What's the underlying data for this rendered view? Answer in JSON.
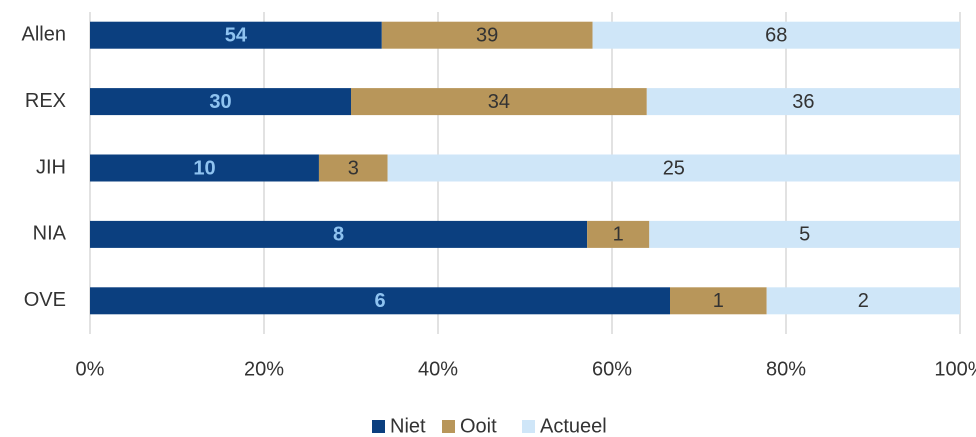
{
  "chart_data": {
    "type": "bar",
    "orientation": "horizontal",
    "stacking": "percent",
    "categories": [
      "Allen",
      "REX",
      "JIH",
      "NIA",
      "OVE"
    ],
    "series": [
      {
        "name": "Niet",
        "color": "#0b3f7f",
        "label_color": "#8fc3f0",
        "values": [
          54,
          30,
          10,
          8,
          6
        ]
      },
      {
        "name": "Ooit",
        "color": "#b8965a",
        "label_color": "#333333",
        "values": [
          39,
          34,
          3,
          1,
          1
        ]
      },
      {
        "name": "Actueel",
        "color": "#cfe6f8",
        "label_color": "#333333",
        "values": [
          68,
          36,
          25,
          5,
          2
        ]
      }
    ],
    "xlim": [
      0,
      100
    ],
    "xticks": [
      {
        "value": 0,
        "label": "0%"
      },
      {
        "value": 20,
        "label": "20%"
      },
      {
        "value": 40,
        "label": "40%"
      },
      {
        "value": 60,
        "label": "60%"
      },
      {
        "value": 80,
        "label": "80%"
      },
      {
        "value": 100,
        "label": "100%"
      }
    ],
    "grid": true,
    "legend": "bottom"
  }
}
